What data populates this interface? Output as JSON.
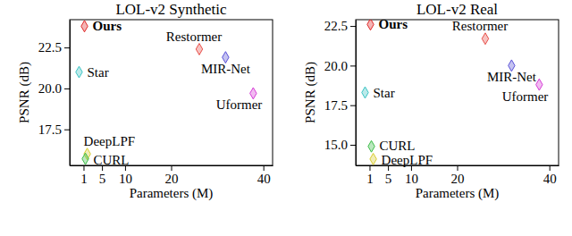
{
  "chart_data": [
    {
      "type": "scatter",
      "title": "LOL-v2 Synthetic",
      "x_label": "Parameters (M)",
      "y_label": "PSNR (dB)",
      "xlim": [
        -2,
        42
      ],
      "xticks": [
        1,
        5,
        10,
        20,
        40
      ],
      "ylim": [
        15.3,
        24.2
      ],
      "yticks": [
        17.5,
        {
          "value": 20.0,
          "label": "20.0"
        },
        22.5
      ],
      "series": [
        {
          "name": "Ours",
          "color": "#e02828",
          "marker": "diamond",
          "x": [
            1.2
          ],
          "values": [
            23.8
          ]
        },
        {
          "name": "Restormer",
          "color": "#e8504a",
          "marker": "diamond",
          "x": [
            26.1
          ],
          "values": [
            22.4
          ]
        },
        {
          "name": "MIR-Net",
          "color": "#5a52d8",
          "marker": "diamond",
          "x": [
            31.8
          ],
          "values": [
            21.9
          ]
        },
        {
          "name": "Uformer",
          "color": "#d63cd6",
          "marker": "diamond",
          "x": [
            37.8
          ],
          "values": [
            19.7
          ]
        },
        {
          "name": "Star",
          "color": "#3cc4c4",
          "marker": "diamond",
          "x": [
            0.03
          ],
          "values": [
            21.0
          ]
        },
        {
          "name": "DeepLPF",
          "color": "#d8cc30",
          "marker": "diamond",
          "x": [
            1.8
          ],
          "values": [
            16.0
          ]
        },
        {
          "name": "CURL",
          "color": "#3cbc48",
          "marker": "diamond",
          "x": [
            1.4
          ],
          "values": [
            15.7
          ]
        }
      ]
    },
    {
      "type": "scatter",
      "title": "LOL-v2 Real",
      "x_label": "Parameters (M)",
      "y_label": "PSNR (dB)",
      "xlim": [
        -2,
        42
      ],
      "xticks": [
        1,
        5,
        10,
        20,
        40
      ],
      "ylim": [
        13.7,
        22.9
      ],
      "yticks": [
        {
          "value": 15.0,
          "label": "15.0"
        },
        17.5,
        {
          "value": 20.0,
          "label": "20.0"
        },
        22.5
      ],
      "series": [
        {
          "name": "Ours",
          "color": "#e02828",
          "marker": "diamond",
          "x": [
            1.2
          ],
          "values": [
            22.6
          ]
        },
        {
          "name": "Restormer",
          "color": "#e8504a",
          "marker": "diamond",
          "x": [
            26.1
          ],
          "values": [
            21.7
          ]
        },
        {
          "name": "MIR-Net",
          "color": "#5a52d8",
          "marker": "diamond",
          "x": [
            31.8
          ],
          "values": [
            20.0
          ]
        },
        {
          "name": "Uformer",
          "color": "#d63cd6",
          "marker": "diamond",
          "x": [
            37.8
          ],
          "values": [
            18.8
          ]
        },
        {
          "name": "Star",
          "color": "#3cc4c4",
          "marker": "diamond",
          "x": [
            0.03
          ],
          "values": [
            18.3
          ]
        },
        {
          "name": "DeepLPF",
          "color": "#d8cc30",
          "marker": "diamond",
          "x": [
            1.8
          ],
          "values": [
            14.1
          ]
        },
        {
          "name": "CURL",
          "color": "#3cbc48",
          "marker": "diamond",
          "x": [
            1.4
          ],
          "values": [
            14.9
          ]
        }
      ]
    }
  ]
}
